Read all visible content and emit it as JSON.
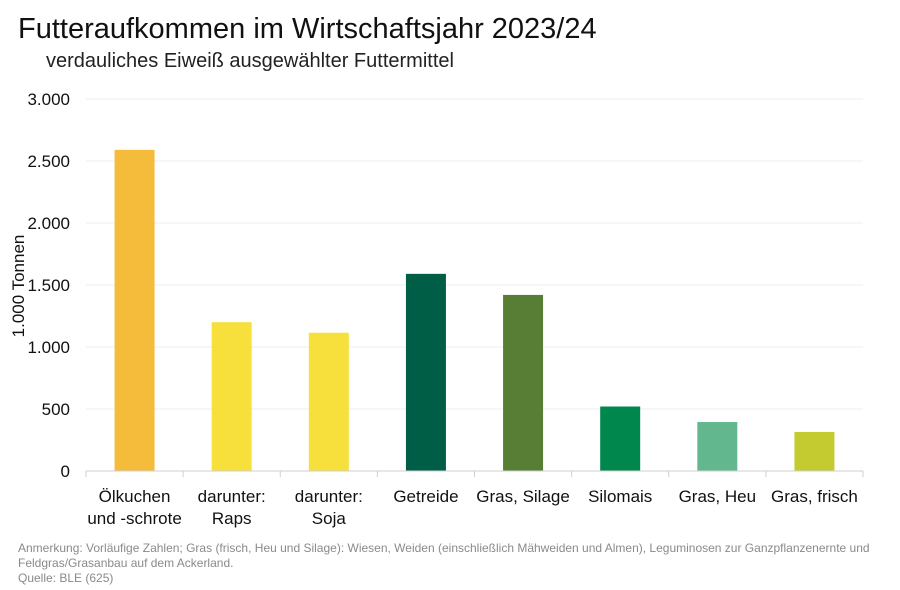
{
  "chart_data": {
    "type": "bar",
    "title": "Futteraufkommen im Wirtschaftsjahr 2023/24",
    "subtitle": "verdauliches Eiweiß ausgewählter Futtermittel",
    "xlabel": "",
    "ylabel": "1.000 Tonnen",
    "ylim": [
      0,
      3000
    ],
    "yticks": [
      0,
      500,
      1000,
      1500,
      2000,
      2500,
      3000
    ],
    "ytick_labels": [
      "0",
      "500",
      "1.000",
      "1.500",
      "2.000",
      "2.500",
      "3.000"
    ],
    "grid": true,
    "categories": [
      [
        "Ölkuchen",
        "und -schrote"
      ],
      [
        "darunter:",
        "Raps"
      ],
      [
        "darunter:",
        "Soja"
      ],
      [
        "Getreide"
      ],
      [
        "Gras, Silage"
      ],
      [
        "Silomais"
      ],
      [
        "Gras, Heu"
      ],
      [
        "Gras, frisch"
      ]
    ],
    "values": [
      2590,
      1200,
      1115,
      1590,
      1420,
      520,
      395,
      315
    ],
    "colors": [
      "#F5BC3C",
      "#F7E03C",
      "#F7E03C",
      "#005E46",
      "#587D35",
      "#00874D",
      "#63B78E",
      "#C3CB31"
    ]
  },
  "footer": {
    "note_line1": "Anmerkung: Vorläufige Zahlen; Gras (frisch, Heu und Silage): Wiesen, Weiden (einschließlich Mähweiden und Almen), Leguminosen zur Ganzpflanzenernte und",
    "note_line2": "Feldgras/Grasanbau auf dem Ackerland.",
    "source": "Quelle: BLE (625)"
  }
}
